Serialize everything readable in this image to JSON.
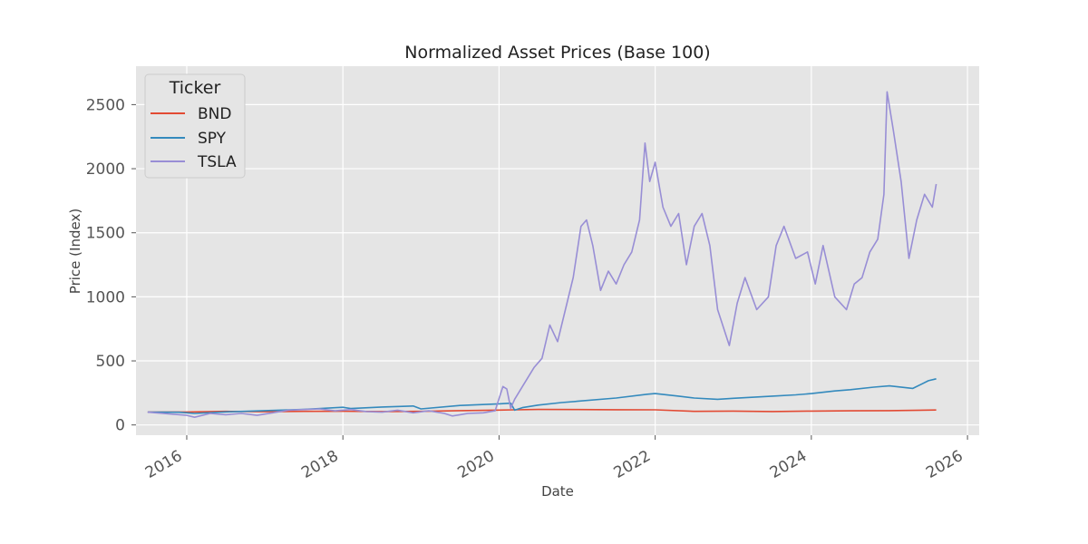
{
  "chart_data": {
    "type": "line",
    "title": "Normalized Asset Prices (Base 100)",
    "xlabel": "Date",
    "ylabel": "Price (Index)",
    "xlim": [
      2015.35,
      2026.15
    ],
    "ylim": [
      -80,
      2800
    ],
    "x_ticks": [
      2016,
      2018,
      2020,
      2022,
      2024,
      2026
    ],
    "x_tick_labels": [
      "2016",
      "2018",
      "2020",
      "2022",
      "2024",
      "2026"
    ],
    "y_ticks": [
      0,
      500,
      1000,
      1500,
      2000,
      2500
    ],
    "y_tick_labels": [
      "0",
      "500",
      "1000",
      "1500",
      "2000",
      "2500"
    ],
    "grid": true,
    "background": "#e5e5e5",
    "legend": {
      "title": "Ticker",
      "placement": "top-left"
    },
    "series": [
      {
        "name": "BND",
        "color": "#e24a33",
        "x": [
          2015.5,
          2016.0,
          2016.5,
          2017.0,
          2017.5,
          2018.0,
          2018.5,
          2019.0,
          2019.5,
          2020.0,
          2020.2,
          2020.5,
          2021.0,
          2021.5,
          2022.0,
          2022.5,
          2023.0,
          2023.5,
          2024.0,
          2024.5,
          2025.0,
          2025.6
        ],
        "y": [
          100,
          101,
          106,
          103,
          106,
          107,
          105,
          106,
          112,
          116,
          118,
          121,
          120,
          119,
          118,
          106,
          108,
          105,
          108,
          110,
          112,
          117
        ]
      },
      {
        "name": "SPY",
        "color": "#348abd",
        "x": [
          2015.5,
          2015.9,
          2016.1,
          2016.5,
          2017.0,
          2017.5,
          2018.0,
          2018.1,
          2018.5,
          2018.9,
          2019.0,
          2019.5,
          2020.0,
          2020.15,
          2020.2,
          2020.3,
          2020.5,
          2020.8,
          2021.0,
          2021.5,
          2021.9,
          2022.0,
          2022.3,
          2022.5,
          2022.8,
          2023.0,
          2023.5,
          2023.8,
          2024.0,
          2024.3,
          2024.5,
          2024.8,
          2025.0,
          2025.3,
          2025.5,
          2025.6
        ],
        "y": [
          100,
          99,
          90,
          102,
          112,
          122,
          138,
          128,
          140,
          148,
          125,
          152,
          165,
          170,
          115,
          135,
          155,
          175,
          185,
          210,
          240,
          245,
          225,
          210,
          200,
          208,
          225,
          235,
          245,
          265,
          275,
          295,
          305,
          285,
          345,
          360
        ]
      },
      {
        "name": "TSLA",
        "color": "#988ed5",
        "x": [
          2015.5,
          2015.8,
          2016.0,
          2016.1,
          2016.3,
          2016.5,
          2016.7,
          2016.9,
          2017.1,
          2017.3,
          2017.5,
          2017.7,
          2017.9,
          2018.1,
          2018.3,
          2018.5,
          2018.7,
          2018.9,
          2019.1,
          2019.3,
          2019.4,
          2019.6,
          2019.8,
          2019.95,
          2020.05,
          2020.1,
          2020.15,
          2020.2,
          2020.3,
          2020.45,
          2020.55,
          2020.65,
          2020.75,
          2020.85,
          2020.95,
          2021.05,
          2021.12,
          2021.2,
          2021.3,
          2021.4,
          2021.5,
          2021.6,
          2021.7,
          2021.8,
          2021.87,
          2021.93,
          2022.0,
          2022.1,
          2022.2,
          2022.3,
          2022.4,
          2022.5,
          2022.6,
          2022.7,
          2022.8,
          2022.95,
          2023.05,
          2023.15,
          2023.3,
          2023.45,
          2023.55,
          2023.65,
          2023.8,
          2023.95,
          2024.05,
          2024.15,
          2024.3,
          2024.45,
          2024.55,
          2024.65,
          2024.75,
          2024.85,
          2024.93,
          2024.97,
          2025.05,
          2025.15,
          2025.25,
          2025.35,
          2025.45,
          2025.55,
          2025.6
        ],
        "y": [
          100,
          85,
          75,
          60,
          90,
          80,
          90,
          75,
          95,
          115,
          120,
          125,
          110,
          120,
          105,
          100,
          115,
          95,
          110,
          90,
          70,
          90,
          95,
          110,
          300,
          280,
          130,
          200,
          300,
          450,
          520,
          780,
          650,
          900,
          1150,
          1550,
          1600,
          1400,
          1050,
          1200,
          1100,
          1250,
          1350,
          1600,
          2200,
          1900,
          2050,
          1700,
          1550,
          1650,
          1250,
          1550,
          1650,
          1400,
          900,
          620,
          950,
          1150,
          900,
          1000,
          1400,
          1550,
          1300,
          1350,
          1100,
          1400,
          1000,
          900,
          1100,
          1150,
          1350,
          1450,
          1800,
          2600,
          2300,
          1900,
          1300,
          1600,
          1800,
          1700,
          1880
        ]
      }
    ]
  }
}
